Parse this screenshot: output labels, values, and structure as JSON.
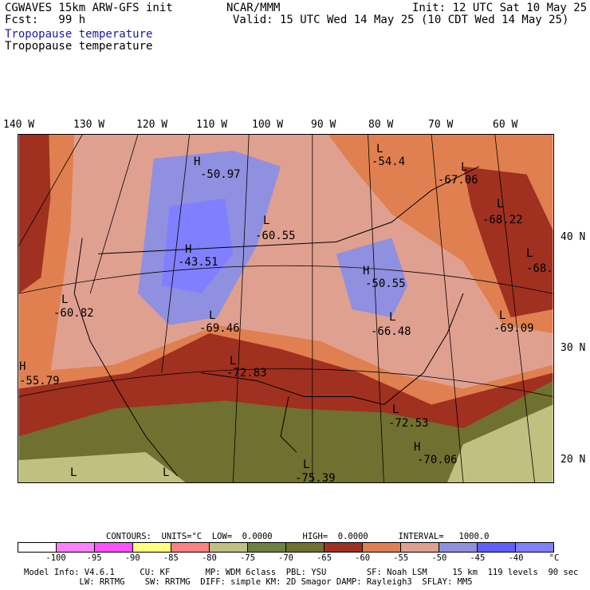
{
  "header": {
    "model": "CGWAVES 15km ARW-GFS init",
    "forecast": "Fcst:   99 h",
    "field_blue": "Tropopause temperature",
    "field_black": "Tropopause temperature",
    "center": "NCAR/MMM",
    "init": "Init: 12 UTC Sat 10 May 25",
    "valid": "Valid: 15 UTC Wed 14 May 25 (10 CDT Wed 14 May 25)"
  },
  "axes": {
    "longitudes": [
      "140 W",
      "130 W",
      "120 W",
      "110 W",
      "100 W",
      "90 W",
      "80 W",
      "70 W",
      "60 W"
    ],
    "latitudes": [
      "40 N",
      "30 N",
      "20 N"
    ]
  },
  "map_labels": [
    {
      "letter": "H",
      "value": "-50.97"
    },
    {
      "letter": "L",
      "value": "-54.4"
    },
    {
      "letter": "L",
      "value": "-67.06"
    },
    {
      "letter": "L",
      "value": "-68.22"
    },
    {
      "letter": "L",
      "value": "-60.55"
    },
    {
      "letter": "H",
      "value": "-43.51"
    },
    {
      "letter": "H",
      "value": "-50.55"
    },
    {
      "letter": "L",
      "value": "-68."
    },
    {
      "letter": "L",
      "value": "-60.82"
    },
    {
      "letter": "L",
      "value": "-69.46"
    },
    {
      "letter": "L",
      "value": "-66.48"
    },
    {
      "letter": "L",
      "value": "-69.09"
    },
    {
      "letter": "H",
      "value": "-55.79"
    },
    {
      "letter": "L",
      "value": "-72.83"
    },
    {
      "letter": "L",
      "value": "-72.53"
    },
    {
      "letter": "H",
      "value": "-70.06"
    },
    {
      "letter": "L",
      "value": ""
    },
    {
      "letter": "L",
      "value": ""
    },
    {
      "letter": "L",
      "value": "-75.39"
    }
  ],
  "contours_line": "CONTOURS:  UNITS=°C  LOW=  0.0000      HIGH=  0.0000      INTERVAL=   1000.0",
  "colorbar": {
    "colors": [
      "#ffffff",
      "#ff80ff",
      "#ff50ff",
      "#ffff80",
      "#ff8080",
      "#c0c080",
      "#708040",
      "#707030",
      "#a03020",
      "#e08050",
      "#e0a090",
      "#9090e0",
      "#6060ff",
      "#8080ff"
    ],
    "labels": [
      "-100",
      "-95",
      "-90",
      "-85",
      "-80",
      "-75",
      "-70",
      "-65",
      "-60",
      "-55",
      "-50",
      "-45",
      "-40",
      "°C"
    ]
  },
  "footer": {
    "line1": "Model Info: V4.6.1     CU: KF       MP: WDM 6class  PBL: YSU        SF: Noah LSM     15 km  119 levels  90 sec",
    "line2": "           LW: RRTMG    SW: RRTMG  DIFF: simple KM: 2D Smagor DAMP: Rayleigh3  SFLAY: MM5"
  }
}
